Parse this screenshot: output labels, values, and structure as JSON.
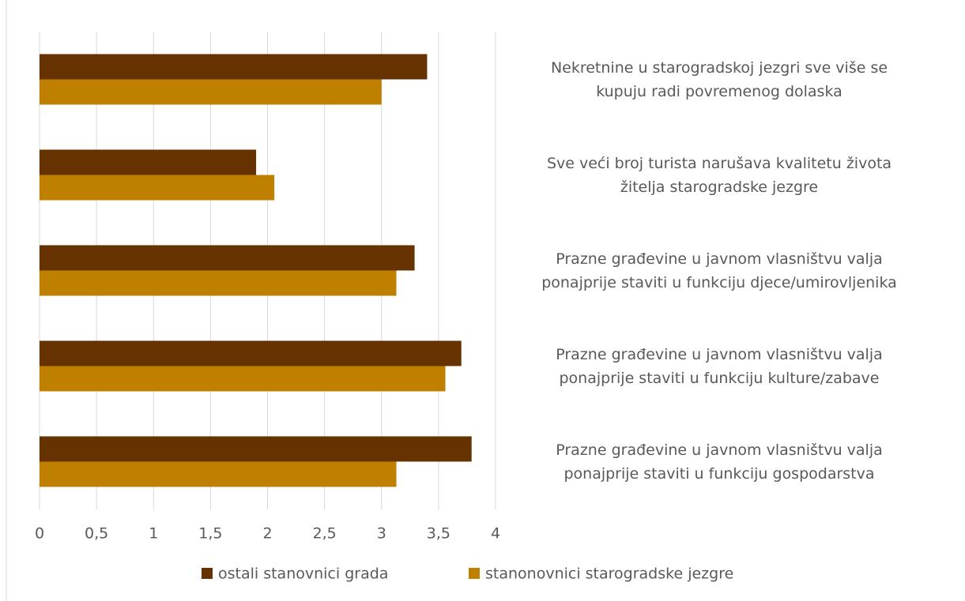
{
  "chart_data": {
    "type": "hbar",
    "categories": [
      "Nekretnine u starogradskoj jezgri sve više se\nkupuju radi povremenog dolaska",
      "Sve veći broj turista narušava kvalitetu života\nžitelja starogradske jezgre",
      "Prazne građevine u javnom vlasništvu valja\nponajprije staviti u funkciju djece/umirovljenika",
      "Prazne građevine u javnom vlasništvu valja\nponajprije staviti u funkciju kulture/zabave",
      "Prazne građevine u javnom vlasništvu valja\nponajprije staviti u funkciju gospodarstva"
    ],
    "series": [
      {
        "name": "ostali stanovnici grada",
        "color": "#663300",
        "values": [
          3.4,
          1.9,
          3.29,
          3.7,
          3.79
        ]
      },
      {
        "name": "stanonovnici starogradske jezgre",
        "color": "#bf8000",
        "values": [
          3.0,
          2.06,
          3.13,
          3.56,
          3.13
        ]
      }
    ],
    "xlim": [
      0,
      4
    ],
    "xticks": [
      0,
      {
        "value": 0.5,
        "label": "0,5"
      },
      1,
      {
        "value": 1.5,
        "label": "1,5"
      },
      2,
      {
        "value": 2.5,
        "label": "2,5"
      },
      3,
      {
        "value": 3.5,
        "label": "3,5"
      },
      4
    ],
    "grid": true,
    "legend": "bottom"
  }
}
